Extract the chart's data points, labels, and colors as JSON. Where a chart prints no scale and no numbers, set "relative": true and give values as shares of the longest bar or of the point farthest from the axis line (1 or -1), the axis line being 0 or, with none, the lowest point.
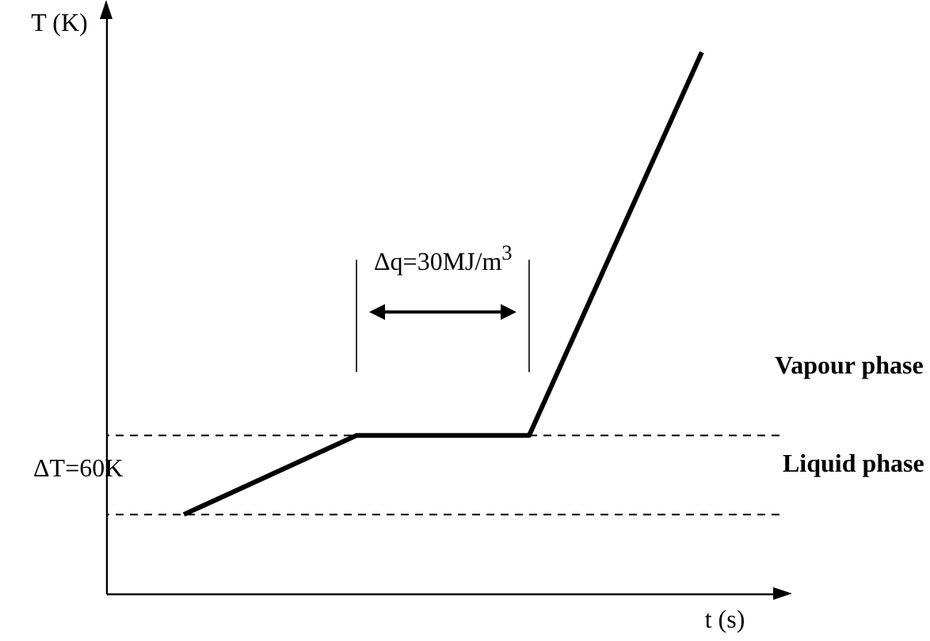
{
  "chart_data": {
    "type": "line",
    "relative": true,
    "categories": [
      null,
      null,
      null,
      null
    ],
    "series": [
      {
        "color": "#000000",
        "values": [
          0.146,
          0.292,
          0.292,
          1
        ]
      }
    ],
    "xlabel": "t (s)",
    "ylabel": "T (K)",
    "line_style": "solid",
    "ref_lines": [
      {
        "axis": "y",
        "value": 0.146,
        "line_style": "dashed",
        "color": "#000000"
      },
      {
        "axis": "y",
        "value": 0.292,
        "line_style": "dashed",
        "color": "#000000"
      }
    ],
    "annotations": [
      "Δq=30MJ/m$^{3}$",
      "ΔT=60K",
      "Vapour phase",
      "Liquid phase"
    ]
  }
}
